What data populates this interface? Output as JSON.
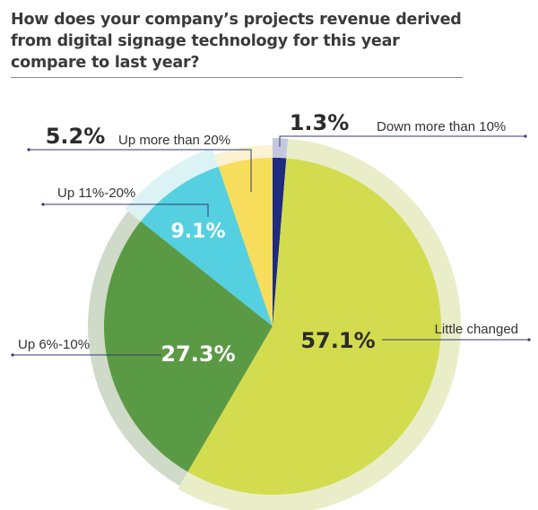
{
  "title": "How does your company’s projects revenue derived from digital signage technology for this year compare to last year?",
  "chart_data": {
    "type": "pie",
    "title": "How does your company’s projects revenue derived from digital signage technology for this year compare to last year?",
    "slices": [
      {
        "label": "Down more than 10%",
        "value": 1.3,
        "value_label": "1.3%",
        "color": "#1f2a80"
      },
      {
        "label": "Little changed",
        "value": 57.1,
        "value_label": "57.1%",
        "color": "#d3dc4e"
      },
      {
        "label": "Up 6%-10%",
        "value": 27.3,
        "value_label": "27.3%",
        "color": "#5a9a45"
      },
      {
        "label": "Up 11%-20%",
        "value": 9.1,
        "value_label": "9.1%",
        "color": "#55d0e0"
      },
      {
        "label": "Up more than 20%",
        "value": 5.2,
        "value_label": "5.2%",
        "color": "#f6dd5c"
      }
    ],
    "start_angle_deg": 0,
    "direction": "clockwise",
    "legend": "none"
  }
}
